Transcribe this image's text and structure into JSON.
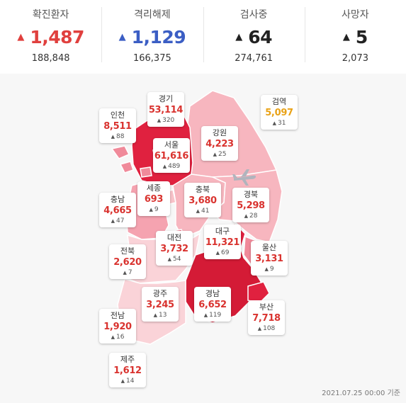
{
  "stats": [
    {
      "label": "확진환자",
      "value": "1,487",
      "total": "188,848",
      "arrow": "▲",
      "color": "red"
    },
    {
      "label": "격리해제",
      "value": "1,129",
      "total": "166,375",
      "arrow": "▲",
      "color": "blue"
    },
    {
      "label": "검사중",
      "value": "64",
      "total": "274,761",
      "arrow": "▲",
      "color": "dark"
    },
    {
      "label": "사망자",
      "value": "5",
      "total": "2,073",
      "arrow": "▲",
      "color": "dark"
    }
  ],
  "regions": {
    "incheon": {
      "name": "인천",
      "value": "8,511",
      "delta": "88"
    },
    "gyeonggi": {
      "name": "경기",
      "value": "53,114",
      "delta": "320"
    },
    "gangwon": {
      "name": "강원",
      "value": "4,223",
      "delta": "25"
    },
    "airport": {
      "name": "검역",
      "value": "5,097",
      "delta": "31"
    },
    "seoul": {
      "name": "서울",
      "value": "61,616",
      "delta": "489"
    },
    "chungnam": {
      "name": "충남",
      "value": "4,665",
      "delta": "47"
    },
    "sejong": {
      "name": "세종",
      "value": "693",
      "delta": "9"
    },
    "chungbuk": {
      "name": "충북",
      "value": "3,680",
      "delta": "41"
    },
    "gyeongbuk": {
      "name": "경북",
      "value": "5,298",
      "delta": "28"
    },
    "daejeon": {
      "name": "대전",
      "value": "3,732",
      "delta": "54"
    },
    "daegu": {
      "name": "대구",
      "value": "11,321",
      "delta": "69"
    },
    "jeonbuk": {
      "name": "전북",
      "value": "2,620",
      "delta": "7"
    },
    "ulsan": {
      "name": "울산",
      "value": "3,131",
      "delta": "9"
    },
    "gwangju": {
      "name": "광주",
      "value": "3,245",
      "delta": "13"
    },
    "gyeongnam": {
      "name": "경남",
      "value": "6,652",
      "delta": "119"
    },
    "busan": {
      "name": "부산",
      "value": "7,718",
      "delta": "108"
    },
    "jeonnam": {
      "name": "전남",
      "value": "1,920",
      "delta": "16"
    },
    "jeju": {
      "name": "제주",
      "value": "1,612",
      "delta": "14"
    }
  },
  "delta_arrow": "▲",
  "icons": {
    "airport": "airplane-icon"
  },
  "colors": {
    "red": "#e0403e",
    "blue": "#3b5ec4",
    "amber": "#e9a216"
  },
  "footer": "2021.07.25 00:00 기준"
}
